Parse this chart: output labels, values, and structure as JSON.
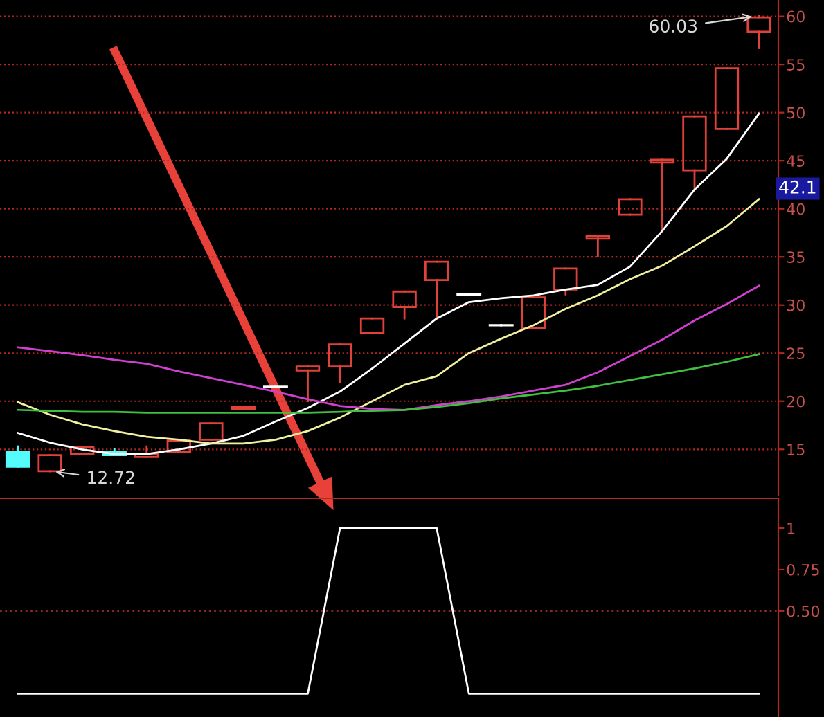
{
  "chart_data": [
    {
      "type": "candlestick",
      "categories": [
        null,
        null,
        null,
        null,
        null,
        null,
        null,
        null,
        null,
        null,
        null,
        null,
        null,
        null,
        null,
        null,
        null,
        null,
        null,
        null,
        null,
        null,
        null,
        null
      ],
      "ohlc": [
        [
          14.7,
          15.3,
          13.2,
          13.2
        ],
        [
          12.72,
          14.4,
          12.72,
          14.4
        ],
        [
          14.5,
          15.2,
          14.5,
          15.2
        ],
        [
          14.7,
          15.0,
          14.4,
          14.4
        ],
        [
          14.2,
          15.3,
          14.2,
          14.5
        ],
        [
          14.7,
          15.9,
          14.7,
          15.9
        ],
        [
          16.0,
          17.7,
          16.0,
          17.7
        ],
        [
          19.2,
          19.4,
          19.2,
          19.4
        ],
        [
          21.5,
          21.5,
          21.5,
          21.5
        ],
        [
          23.2,
          23.6,
          20.0,
          23.6
        ],
        [
          23.6,
          25.9,
          22.0,
          25.9
        ],
        [
          27.1,
          28.6,
          27.1,
          28.6
        ],
        [
          29.8,
          31.4,
          28.6,
          31.4
        ],
        [
          32.6,
          34.5,
          28.6,
          34.5
        ],
        [
          31.1,
          31.1,
          31.1,
          31.1
        ],
        [
          27.9,
          27.9,
          27.9,
          27.9
        ],
        [
          27.6,
          30.8,
          27.6,
          30.8
        ],
        [
          31.6,
          33.8,
          31.1,
          33.8
        ],
        [
          36.9,
          37.2,
          35.1,
          37.2
        ],
        [
          39.4,
          41.0,
          39.4,
          41.0
        ],
        [
          44.8,
          45.1,
          37.7,
          45.1
        ],
        [
          44.0,
          49.6,
          42.0,
          49.6
        ],
        [
          48.3,
          54.6,
          48.3,
          54.6
        ],
        [
          58.4,
          60.03,
          56.7,
          59.9
        ]
      ],
      "colors": [
        "#54fcfc",
        "#e0413a",
        "#e0413a",
        "#54fcfc",
        "#e0413a",
        "#e0413a",
        "#e0413a",
        "#e0413a",
        "#ffffff",
        "#e0413a",
        "#e0413a",
        "#e0413a",
        "#e0413a",
        "#e0413a",
        "#ffffff",
        "#ffffff",
        "#e0413a",
        "#e0413a",
        "#e0413a",
        "#e0413a",
        "#e0413a",
        "#e0413a",
        "#e0413a",
        "#e0413a"
      ],
      "series": [
        {
          "type": "line",
          "color": "#ffffff",
          "values": [
            16.7,
            15.7,
            15.0,
            14.5,
            14.5,
            15.0,
            15.6,
            16.4,
            17.9,
            19.3,
            21.0,
            23.4,
            26.0,
            28.6,
            30.3,
            30.7,
            31.0,
            31.6,
            32.1,
            34.0,
            37.7,
            42.0,
            45.2,
            49.9
          ]
        },
        {
          "type": "line",
          "color": "#f0f0a0",
          "values": [
            19.9,
            18.6,
            17.6,
            16.9,
            16.3,
            16.0,
            15.6,
            15.6,
            16.0,
            16.9,
            18.3,
            20.0,
            21.7,
            22.6,
            25.0,
            26.5,
            27.9,
            29.6,
            31.0,
            32.7,
            34.1,
            36.1,
            38.2,
            41.0
          ]
        },
        {
          "type": "line",
          "color": "#d040d0",
          "values": [
            25.6,
            25.2,
            24.8,
            24.3,
            23.9,
            23.1,
            22.4,
            21.7,
            21.0,
            20.2,
            19.5,
            19.2,
            19.1,
            19.6,
            20.0,
            20.5,
            21.1,
            21.7,
            23.0,
            24.7,
            26.4,
            28.4,
            30.1,
            32.0
          ]
        },
        {
          "type": "line",
          "color": "#40c040",
          "values": [
            19.1,
            19.0,
            18.9,
            18.9,
            18.8,
            18.8,
            18.8,
            18.8,
            18.8,
            18.8,
            18.9,
            19.0,
            19.1,
            19.4,
            19.8,
            20.3,
            20.7,
            21.1,
            21.6,
            22.2,
            22.8,
            23.4,
            24.1,
            24.9
          ]
        }
      ],
      "ylim": [
        10.2,
        61.7
      ],
      "yticks": [
        15,
        20,
        25,
        30,
        35,
        40,
        45,
        50,
        55,
        60
      ],
      "grid": "y",
      "tick_labels": "y",
      "annotations": [
        "60.03",
        "12.72",
        {
          "text": "42.1",
          "y": 42.1
        }
      ]
    },
    {
      "type": "line",
      "categories": [
        null,
        null,
        null,
        null,
        null,
        null,
        null,
        null,
        null,
        null,
        null,
        null,
        null,
        null,
        null,
        null,
        null,
        null,
        null,
        null,
        null,
        null,
        null,
        null
      ],
      "series": [
        {
          "color": "#ffffff",
          "values": [
            0,
            0,
            0,
            0,
            0,
            0,
            0,
            0,
            0,
            0,
            1,
            1,
            1,
            1,
            0,
            0,
            0,
            0,
            0,
            0,
            0,
            0,
            0,
            0
          ]
        }
      ],
      "ylim": [
        -0.14,
        1.18
      ],
      "yticks": [
        1,
        {
          "value": 0.75,
          "label": "0.75"
        },
        {
          "value": 0.5,
          "label": "0.50"
        }
      ],
      "tick_labels": "y",
      "ref_lines": [
        {
          "axis": "y",
          "value": 0.5,
          "color": "#8b2a20",
          "line_style": "dotted"
        }
      ]
    }
  ]
}
